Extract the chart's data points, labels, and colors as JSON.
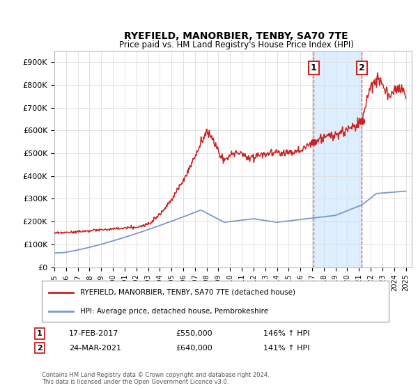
{
  "title": "RYEFIELD, MANORBIER, TENBY, SA70 7TE",
  "subtitle": "Price paid vs. HM Land Registry's House Price Index (HPI)",
  "ylabel_ticks": [
    "£0",
    "£100K",
    "£200K",
    "£300K",
    "£400K",
    "£500K",
    "£600K",
    "£700K",
    "£800K",
    "£900K"
  ],
  "ytick_values": [
    0,
    100000,
    200000,
    300000,
    400000,
    500000,
    600000,
    700000,
    800000,
    900000
  ],
  "ylim": [
    0,
    950000
  ],
  "xlim_start": 1995.0,
  "xlim_end": 2025.5,
  "marker1_x": 2017.12,
  "marker1_y": 550000,
  "marker2_x": 2021.23,
  "marker2_y": 640000,
  "shade_color": "#ddeeff",
  "legend_label_red": "RYEFIELD, MANORBIER, TENBY, SA70 7TE (detached house)",
  "legend_label_blue": "HPI: Average price, detached house, Pembrokeshire",
  "table_rows": [
    {
      "num": "1",
      "date": "17-FEB-2017",
      "price": "£550,000",
      "hpi": "146% ↑ HPI"
    },
    {
      "num": "2",
      "date": "24-MAR-2021",
      "price": "£640,000",
      "hpi": "141% ↑ HPI"
    }
  ],
  "footnote": "Contains HM Land Registry data © Crown copyright and database right 2024.\nThis data is licensed under the Open Government Licence v3.0.",
  "red_color": "#cc2222",
  "blue_color": "#7799cc",
  "marker_box_color": "#cc2222",
  "grid_color": "#dddddd",
  "background_color": "#ffffff"
}
